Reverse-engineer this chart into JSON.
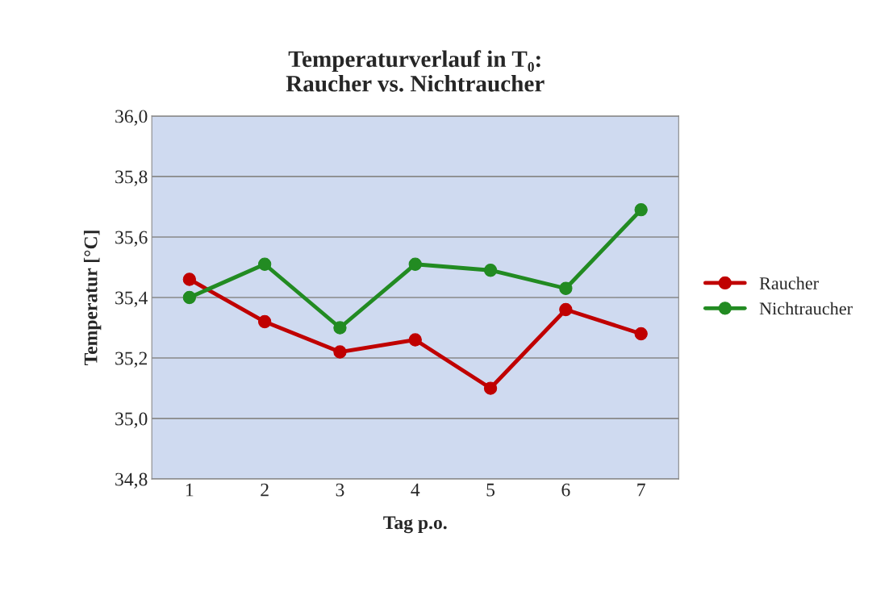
{
  "chart_data": {
    "type": "line",
    "title": "Temperaturverlauf in T₀:\nRaucher vs. Nichtraucher",
    "xlabel": "Tag p.o.",
    "ylabel": "Temperatur [°C]",
    "categories": [
      "1",
      "2",
      "3",
      "4",
      "5",
      "6",
      "7"
    ],
    "series": [
      {
        "name": "Raucher",
        "color": "#c00000",
        "values": [
          35.46,
          35.32,
          35.22,
          35.26,
          35.1,
          35.36,
          35.28
        ]
      },
      {
        "name": "Nichtraucher",
        "color": "#228b22",
        "values": [
          35.4,
          35.51,
          35.3,
          35.51,
          35.49,
          35.43,
          35.69
        ]
      }
    ],
    "ylim": [
      34.8,
      36.0
    ],
    "yticks": [
      {
        "value": 34.8,
        "label": "34,8"
      },
      {
        "value": 35.0,
        "label": "35,0"
      },
      {
        "value": 35.2,
        "label": "35,2"
      },
      {
        "value": 35.4,
        "label": "35,4"
      },
      {
        "value": 35.6,
        "label": "35,6"
      },
      {
        "value": 35.8,
        "label": "35,8"
      },
      {
        "value": 36.0,
        "label": "36,0"
      }
    ],
    "grid": "y",
    "legend": "right",
    "marker": "circle",
    "line_style": "solid"
  }
}
